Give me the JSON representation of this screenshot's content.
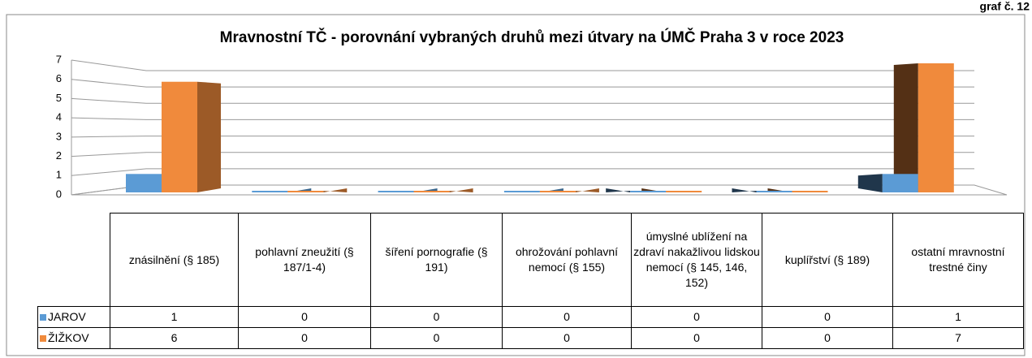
{
  "label": "graf č. 12",
  "chart_data": {
    "type": "bar3d",
    "title": "Mravnostní TČ - porovnání vybraných druhů mezi útvary na ÚMČ Praha 3 v roce 2023",
    "categories": [
      "znásilnění (§ 185)",
      "pohlavní zneužití (§ 187/1-4)",
      "šíření pornografie (§ 191)",
      "ohrožování pohlavní nemocí (§ 155)",
      "úmyslné ublížení na zdraví nakažlivou lidskou nemocí (§ 145, 146, 152)",
      "kuplířství (§ 189)",
      "ostatní mravnostní trestné činy"
    ],
    "series": [
      {
        "name": "JAROV",
        "color": "#5b9bd5",
        "values": [
          1,
          0,
          0,
          0,
          0,
          0,
          1
        ]
      },
      {
        "name": "ŽIŽKOV",
        "color": "#f08a3c",
        "values": [
          6,
          0,
          0,
          0,
          0,
          0,
          7
        ]
      }
    ],
    "ylim": [
      0,
      7
    ],
    "yticks": [
      0,
      1,
      2,
      3,
      4,
      5,
      6,
      7
    ],
    "grid": true,
    "data_table": true
  }
}
